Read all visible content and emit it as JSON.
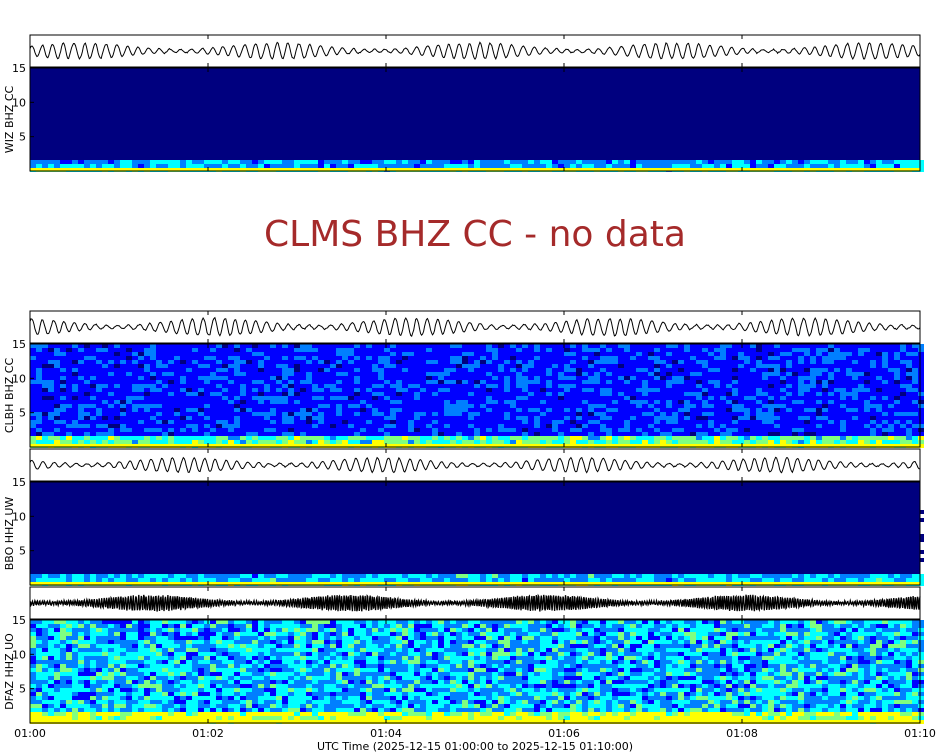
{
  "chart_data": {
    "type": "heatmap",
    "description_type": "seismogram waveforms with spectrograms",
    "xlabel": "UTC Time (2025-12-15 01:00:00 to 2025-12-15 01:10:00)",
    "x_ticks": [
      "01:00",
      "01:02",
      "01:04",
      "01:06",
      "01:08",
      "01:10"
    ],
    "xlim": [
      "01:00",
      "01:10"
    ],
    "y_ticks": [
      5,
      10,
      15
    ],
    "ylim": [
      0,
      15
    ],
    "colormap": [
      "#00007F",
      "#0000FF",
      "#007FFF",
      "#00FFFF",
      "#7FFF7F",
      "#FFFF00",
      "#FF7F00"
    ],
    "panels": [
      {
        "station": "WIZ BHZ CC",
        "has_data": true,
        "level": 0.05,
        "waveform_amplitude": 0.55,
        "waveform_style": "thin"
      },
      {
        "station": "CLMS BHZ CC",
        "has_data": false,
        "message": "CLMS BHZ CC - no data"
      },
      {
        "station": "CLBH BHZ CC",
        "has_data": true,
        "level": 0.28,
        "waveform_amplitude": 0.6,
        "waveform_style": "thin"
      },
      {
        "station": "BBO HHZ UW",
        "has_data": true,
        "level": 0.1,
        "waveform_amplitude": 0.5,
        "waveform_style": "thin"
      },
      {
        "station": "DFAZ HHZ UO",
        "has_data": true,
        "level": 0.5,
        "waveform_amplitude": 0.55,
        "waveform_style": "dense"
      }
    ]
  }
}
